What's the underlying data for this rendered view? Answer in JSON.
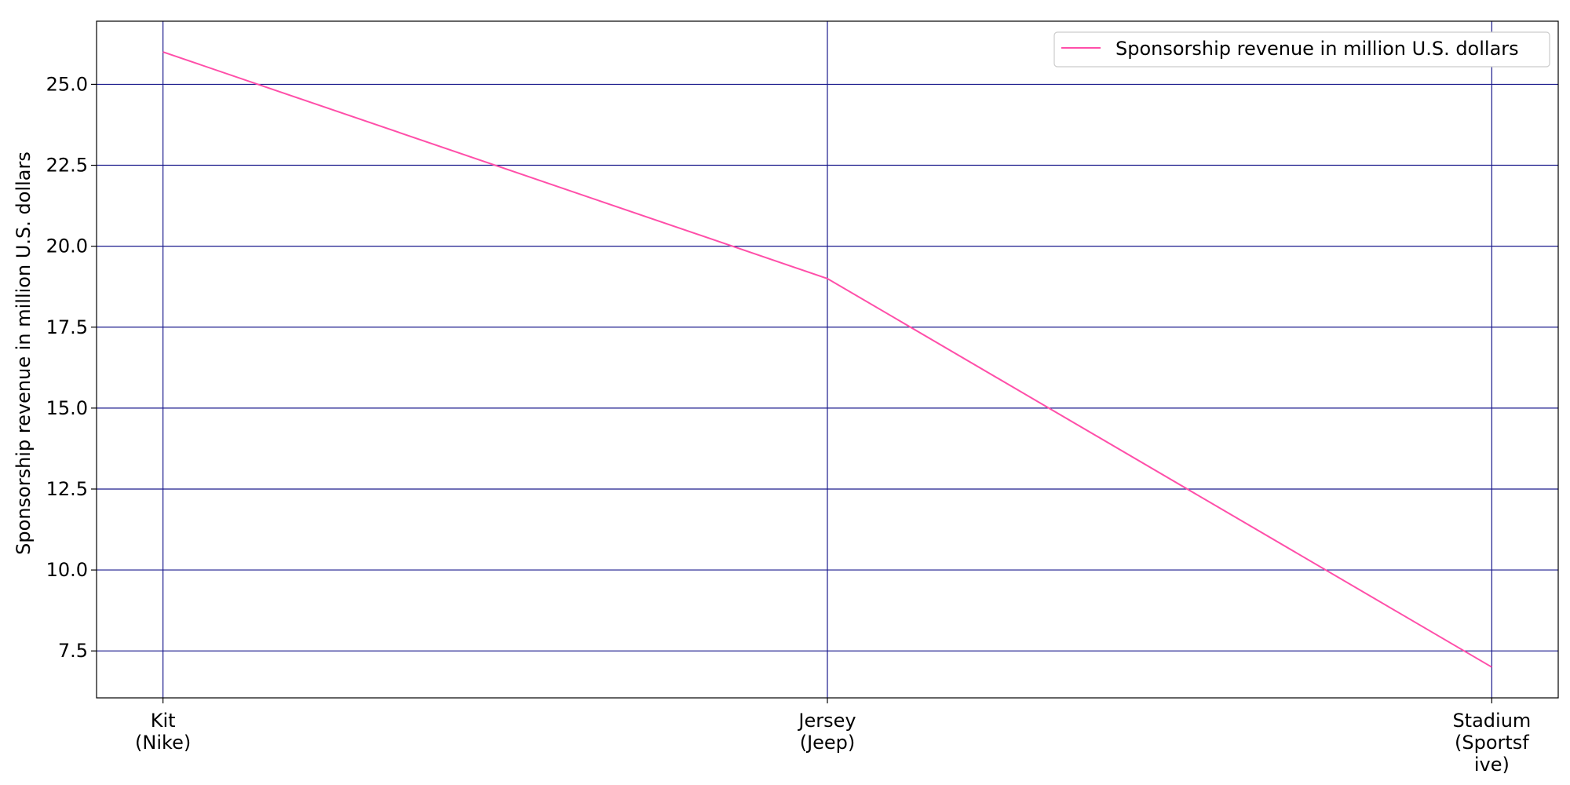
{
  "chart_data": {
    "type": "line",
    "categories": [
      "Kit\n(Nike)",
      "Jersey\n(Jeep)",
      "Stadium\n(Sportsf\nive)"
    ],
    "series": [
      {
        "name": "Sponsorship revenue in million U.S. dollars",
        "values": [
          26,
          19,
          7
        ],
        "color": "#ff4fa9"
      }
    ],
    "xlabel": "",
    "ylabel": "Sponsorship revenue in million U.S. dollars",
    "ylim": [
      6.05,
      26.95
    ],
    "yticks": [
      7.5,
      10.0,
      12.5,
      15.0,
      17.5,
      20.0,
      22.5,
      25.0
    ],
    "grid": true,
    "grid_color": "#1a1a8c",
    "legend_position": "top-right"
  }
}
